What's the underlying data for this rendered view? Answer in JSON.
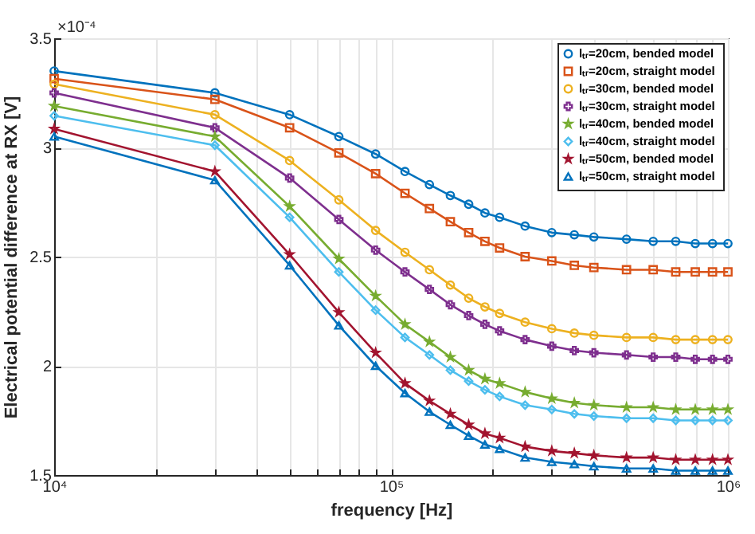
{
  "chart_data": {
    "type": "line",
    "xlabel": "frequency [Hz]",
    "ylabel": "Electrical potential difference at RX [V]",
    "annotations": [
      "×10⁻⁴"
    ],
    "x": [
      10000,
      30000,
      50000,
      70000,
      90000,
      110000,
      130000,
      150000,
      170000,
      190000,
      210000,
      250000,
      300000,
      350000,
      400000,
      500000,
      600000,
      700000,
      800000,
      900000,
      1000000
    ],
    "log": "x",
    "xlim": [
      10000,
      1000000
    ],
    "xticks": [
      {
        "value": 10000,
        "label": "10⁴"
      },
      {
        "value": 20000,
        "label": null
      },
      {
        "value": 30000,
        "label": null
      },
      {
        "value": 40000,
        "label": null
      },
      {
        "value": 50000,
        "label": null
      },
      {
        "value": 60000,
        "label": null
      },
      {
        "value": 70000,
        "label": null
      },
      {
        "value": 80000,
        "label": null
      },
      {
        "value": 90000,
        "label": null
      },
      {
        "value": 100000,
        "label": "10⁵"
      },
      {
        "value": 200000,
        "label": null
      },
      {
        "value": 300000,
        "label": null
      },
      {
        "value": 400000,
        "label": null
      },
      {
        "value": 500000,
        "label": null
      },
      {
        "value": 600000,
        "label": null
      },
      {
        "value": 700000,
        "label": null
      },
      {
        "value": 800000,
        "label": null
      },
      {
        "value": 900000,
        "label": null
      },
      {
        "value": 1000000,
        "label": "10⁶"
      }
    ],
    "ylim": [
      1.5,
      3.5
    ],
    "yticks": [
      1.5,
      2,
      2.5,
      3,
      3.5
    ],
    "grid": true,
    "legend": "top right",
    "line_style": "solid",
    "series": [
      {
        "name": "lₜᵣ=20cm, bended model",
        "color": "#0072bd",
        "marker": "circle",
        "values": [
          3.35,
          3.25,
          3.15,
          3.05,
          2.97,
          2.89,
          2.83,
          2.78,
          2.74,
          2.7,
          2.68,
          2.64,
          2.61,
          2.6,
          2.59,
          2.58,
          2.57,
          2.57,
          2.56,
          2.56,
          2.56
        ]
      },
      {
        "name": "lₜᵣ=20cm,  straight model",
        "color": "#d95319",
        "marker": "square",
        "values": [
          3.315,
          3.22,
          3.09,
          2.975,
          2.88,
          2.79,
          2.72,
          2.66,
          2.61,
          2.57,
          2.54,
          2.5,
          2.48,
          2.46,
          2.45,
          2.44,
          2.44,
          2.43,
          2.43,
          2.43,
          2.43
        ]
      },
      {
        "name": "lₜᵣ=30cm, bended model",
        "color": "#edb120",
        "marker": "circle",
        "values": [
          3.29,
          3.15,
          2.94,
          2.76,
          2.62,
          2.52,
          2.44,
          2.37,
          2.31,
          2.27,
          2.24,
          2.2,
          2.17,
          2.15,
          2.14,
          2.13,
          2.13,
          2.12,
          2.12,
          2.12,
          2.12
        ]
      },
      {
        "name": "lₜᵣ=30cm,  straight model",
        "color": "#7e2f8e",
        "marker": "cross",
        "values": [
          3.25,
          3.09,
          2.86,
          2.67,
          2.53,
          2.43,
          2.35,
          2.28,
          2.23,
          2.19,
          2.16,
          2.12,
          2.09,
          2.07,
          2.06,
          2.05,
          2.04,
          2.04,
          2.03,
          2.03,
          2.03
        ]
      },
      {
        "name": "lₜᵣ=40cm, bended model",
        "color": "#77ac30",
        "marker": "star",
        "values": [
          3.19,
          3.05,
          2.73,
          2.49,
          2.32,
          2.19,
          2.11,
          2.04,
          1.98,
          1.94,
          1.92,
          1.88,
          1.85,
          1.83,
          1.82,
          1.81,
          1.81,
          1.8,
          1.8,
          1.8,
          1.8
        ]
      },
      {
        "name": "lₜᵣ=40cm,  straight model",
        "color": "#4dbeee",
        "marker": "diamond",
        "values": [
          3.145,
          3.01,
          2.68,
          2.43,
          2.255,
          2.13,
          2.05,
          1.98,
          1.93,
          1.89,
          1.86,
          1.82,
          1.8,
          1.78,
          1.77,
          1.76,
          1.76,
          1.75,
          1.75,
          1.75,
          1.75
        ]
      },
      {
        "name": "lₜᵣ=50cm, bended model",
        "color": "#a2142f",
        "marker": "star",
        "values": [
          3.085,
          2.89,
          2.51,
          2.245,
          2.06,
          1.92,
          1.84,
          1.78,
          1.73,
          1.69,
          1.67,
          1.63,
          1.61,
          1.6,
          1.59,
          1.58,
          1.58,
          1.57,
          1.57,
          1.57,
          1.57
        ]
      },
      {
        "name": "lₜᵣ=50cm,  straight model",
        "color": "#0072bd",
        "marker": "triangle",
        "values": [
          3.05,
          2.85,
          2.46,
          2.185,
          2.0,
          1.875,
          1.79,
          1.73,
          1.68,
          1.64,
          1.62,
          1.58,
          1.56,
          1.55,
          1.54,
          1.53,
          1.53,
          1.52,
          1.52,
          1.52,
          1.52
        ]
      }
    ]
  }
}
